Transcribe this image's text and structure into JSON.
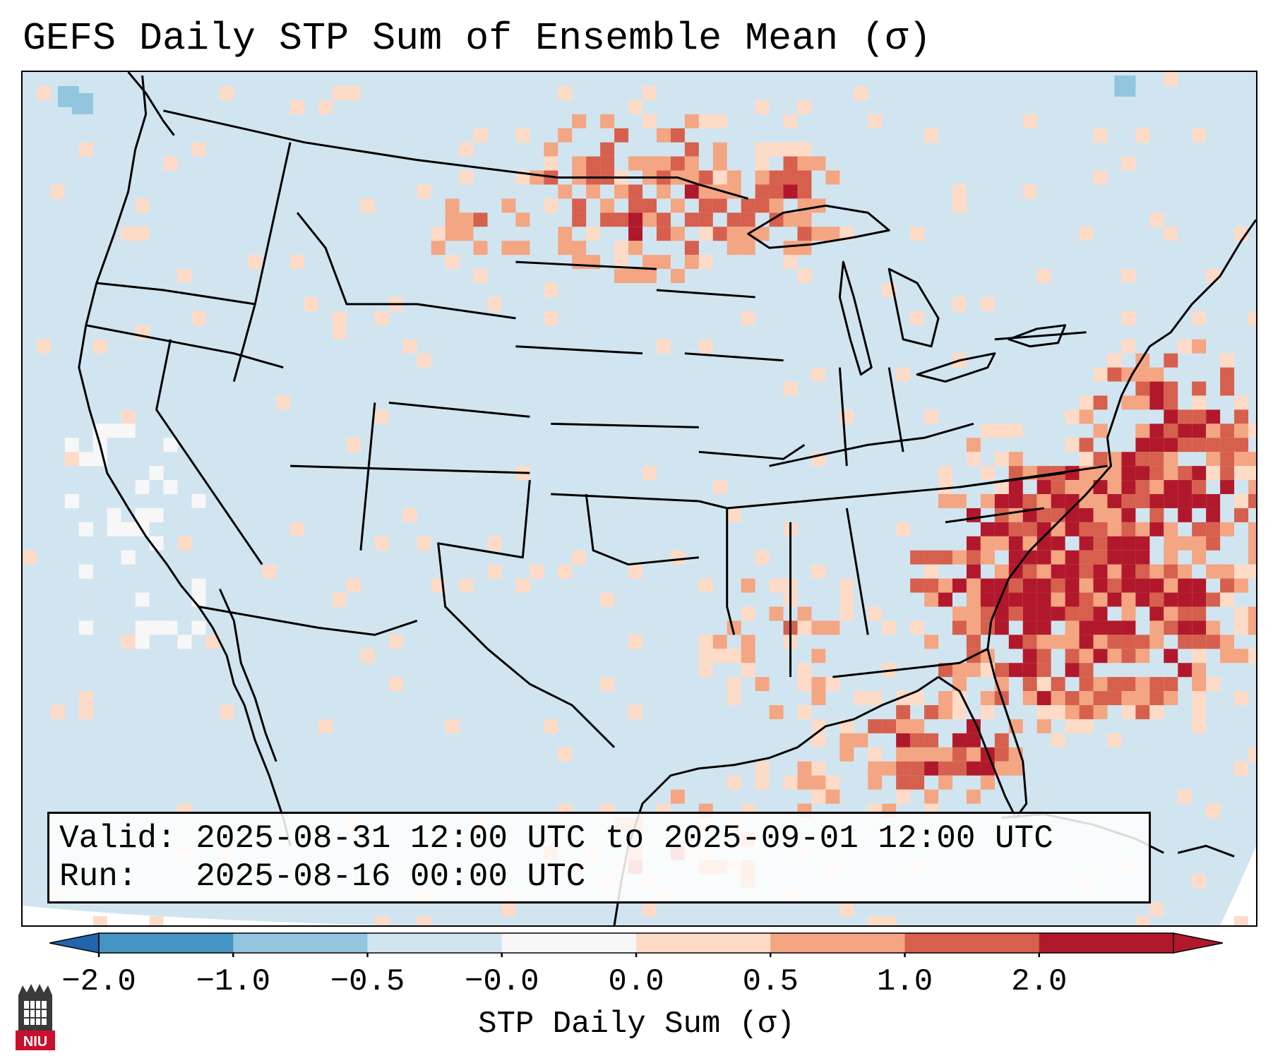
{
  "title": "GEFS Daily STP Sum of Ensemble Mean (σ)",
  "info": {
    "valid_label": "Valid:",
    "valid_value": "2025-08-31 12:00 UTC to 2025-09-01 12:00 UTC",
    "run_label": "Run:",
    "run_value": "2025-08-16 00:00 UTC"
  },
  "colorbar": {
    "label": "STP Daily Sum (σ)",
    "ticks": [
      "−2.0",
      "−1.0",
      "−0.5",
      "−0.0",
      "0.0",
      "0.5",
      "1.0",
      "2.0"
    ],
    "segment_colors": [
      "#4393c3",
      "#92c5de",
      "#d1e5f0",
      "#f7f7f7",
      "#fddbc7",
      "#f4a582",
      "#d6604d",
      "#b2182b"
    ],
    "under_color": "#2166ac",
    "over_color": "#b2182b"
  },
  "logo": {
    "text": "NIU"
  },
  "colors": {
    "background": "#d1e5f0",
    "ocean_offmap": "#ffffff",
    "border": "#000000"
  }
}
